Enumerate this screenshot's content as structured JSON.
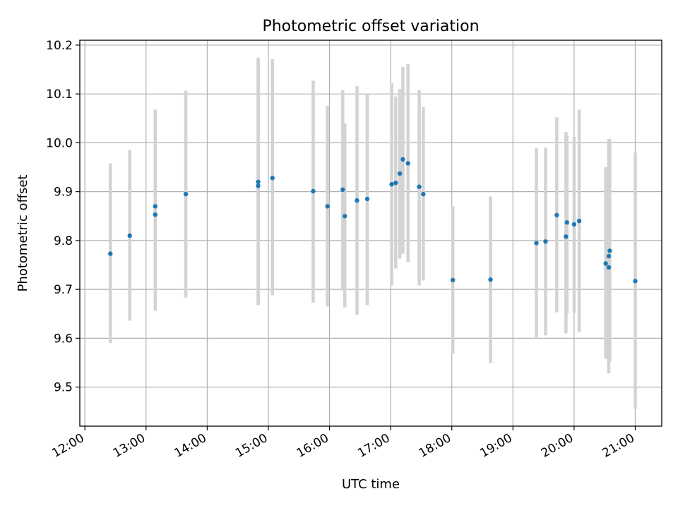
{
  "chart_data": {
    "type": "scatter",
    "title": "Photometric offset variation",
    "xlabel": "UTC time",
    "ylabel": "Photometric offset",
    "x_axis_kind": "time",
    "xlim": [
      "11:55",
      "21:26"
    ],
    "ylim": [
      9.42,
      10.21
    ],
    "x_ticks": [
      "12:00",
      "13:00",
      "14:00",
      "15:00",
      "16:00",
      "17:00",
      "18:00",
      "19:00",
      "20:00",
      "21:00"
    ],
    "y_ticks": [
      "9.5",
      "9.6",
      "9.7",
      "9.8",
      "9.9",
      "10.0",
      "10.1",
      "10.2"
    ],
    "grid": true,
    "error_bar_color": "#d3d3d3",
    "marker_color": "#1f77b4",
    "points": [
      {
        "t": "12:25",
        "y": 9.773,
        "lo": 9.59,
        "hi": 9.958
      },
      {
        "t": "12:44",
        "y": 9.81,
        "lo": 9.636,
        "hi": 9.985
      },
      {
        "t": "13:09",
        "y": 9.853,
        "lo": 9.656,
        "hi": 10.068
      },
      {
        "t": "13:09",
        "y": 9.87,
        "lo": 9.673,
        "hi": 10.06
      },
      {
        "t": "13:39",
        "y": 9.895,
        "lo": 9.683,
        "hi": 10.107
      },
      {
        "t": "14:50",
        "y": 9.92,
        "lo": 9.668,
        "hi": 10.174
      },
      {
        "t": "14:50",
        "y": 9.912,
        "lo": 9.668,
        "hi": 10.174
      },
      {
        "t": "15:04",
        "y": 9.928,
        "lo": 9.688,
        "hi": 10.171
      },
      {
        "t": "15:44",
        "y": 9.901,
        "lo": 9.673,
        "hi": 10.127
      },
      {
        "t": "15:58",
        "y": 9.87,
        "lo": 9.665,
        "hi": 10.076
      },
      {
        "t": "16:13",
        "y": 9.904,
        "lo": 9.698,
        "hi": 10.108
      },
      {
        "t": "16:15",
        "y": 9.85,
        "lo": 9.663,
        "hi": 10.04
      },
      {
        "t": "16:27",
        "y": 9.882,
        "lo": 9.648,
        "hi": 10.116
      },
      {
        "t": "16:37",
        "y": 9.885,
        "lo": 9.668,
        "hi": 10.1
      },
      {
        "t": "17:01",
        "y": 9.915,
        "lo": 9.708,
        "hi": 10.122
      },
      {
        "t": "17:05",
        "y": 9.918,
        "lo": 9.743,
        "hi": 10.095
      },
      {
        "t": "17:09",
        "y": 9.937,
        "lo": 9.763,
        "hi": 10.11
      },
      {
        "t": "17:12",
        "y": 9.966,
        "lo": 9.773,
        "hi": 10.155
      },
      {
        "t": "17:17",
        "y": 9.958,
        "lo": 9.756,
        "hi": 10.161
      },
      {
        "t": "17:28",
        "y": 9.91,
        "lo": 9.708,
        "hi": 10.108
      },
      {
        "t": "17:32",
        "y": 9.895,
        "lo": 9.718,
        "hi": 10.073
      },
      {
        "t": "18:01",
        "y": 9.719,
        "lo": 9.568,
        "hi": 9.87
      },
      {
        "t": "18:38",
        "y": 9.72,
        "lo": 9.549,
        "hi": 9.89
      },
      {
        "t": "19:23",
        "y": 9.795,
        "lo": 9.6,
        "hi": 9.99
      },
      {
        "t": "19:32",
        "y": 9.798,
        "lo": 9.606,
        "hi": 9.99
      },
      {
        "t": "19:43",
        "y": 9.852,
        "lo": 9.653,
        "hi": 10.052
      },
      {
        "t": "19:52",
        "y": 9.808,
        "lo": 9.61,
        "hi": 10.022
      },
      {
        "t": "19:53",
        "y": 9.837,
        "lo": 9.65,
        "hi": 10.016
      },
      {
        "t": "20:00",
        "y": 9.833,
        "lo": 9.652,
        "hi": 10.012
      },
      {
        "t": "20:05",
        "y": 9.84,
        "lo": 9.612,
        "hi": 10.068
      },
      {
        "t": "20:31",
        "y": 9.753,
        "lo": 9.558,
        "hi": 9.95
      },
      {
        "t": "20:34",
        "y": 9.768,
        "lo": 9.553,
        "hi": 9.958
      },
      {
        "t": "20:34",
        "y": 9.745,
        "lo": 9.528,
        "hi": 10.008
      },
      {
        "t": "20:35",
        "y": 9.779,
        "lo": 9.552,
        "hi": 10.008
      },
      {
        "t": "21:00",
        "y": 9.717,
        "lo": 9.455,
        "hi": 9.98
      }
    ]
  }
}
